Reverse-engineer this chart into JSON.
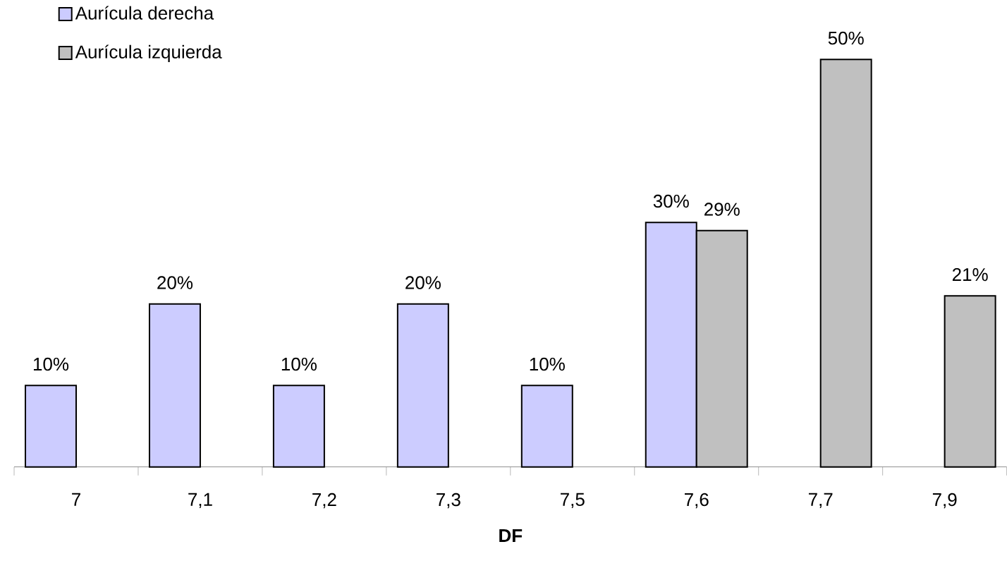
{
  "chart_data": {
    "type": "bar",
    "xlabel": "DF",
    "categories": [
      "7",
      "7,1",
      "7,2",
      "7,3",
      "7,5",
      "7,6",
      "7,7",
      "7,9"
    ],
    "series": [
      {
        "name": "Aurícula derecha",
        "color": "#ccccff",
        "values": [
          10,
          20,
          10,
          20,
          10,
          30,
          null,
          null
        ],
        "value_labels": [
          "10%",
          "20%",
          "10%",
          "20%",
          "10%",
          "30%",
          null,
          null
        ]
      },
      {
        "name": "Aurícula izquierda",
        "color": "#c0c0c0",
        "values": [
          null,
          null,
          null,
          null,
          null,
          29,
          50,
          21
        ],
        "value_labels": [
          null,
          null,
          null,
          null,
          null,
          "29%",
          "50%",
          "21%"
        ]
      }
    ],
    "legend": "top left"
  }
}
